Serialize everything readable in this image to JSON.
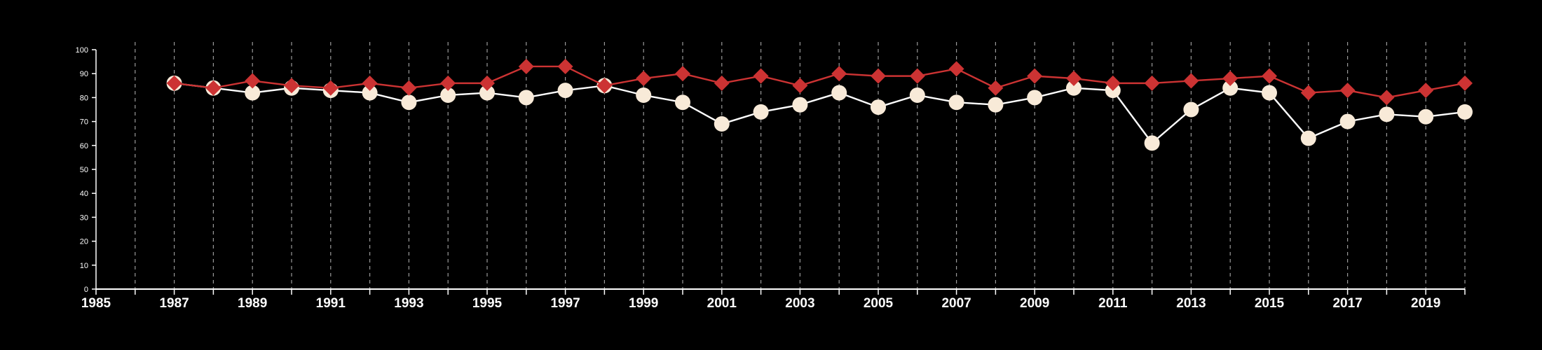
{
  "chart_data": {
    "type": "line",
    "title": "",
    "xlabel": "",
    "ylabel": "",
    "xlim": [
      1985,
      2020
    ],
    "ylim": [
      0,
      100
    ],
    "x_ticks": [
      "1985",
      "1987",
      "1989",
      "1991",
      "1993",
      "1995",
      "1997",
      "1999",
      "2001",
      "2003",
      "2005",
      "2007",
      "2009",
      "2011",
      "2013",
      "2015",
      "2017",
      "2019"
    ],
    "y_ticks": [
      "0",
      "10",
      "20",
      "30",
      "40",
      "50",
      "60",
      "70",
      "80",
      "90",
      "100"
    ],
    "grid": "vertical dashed lines at every year",
    "x": [
      1987,
      1988,
      1989,
      1990,
      1991,
      1992,
      1993,
      1994,
      1995,
      1996,
      1997,
      1998,
      1999,
      2000,
      2001,
      2002,
      2003,
      2004,
      2005,
      2006,
      2007,
      2008,
      2009,
      2010,
      2011,
      2012,
      2013,
      2014,
      2015,
      2016,
      2017,
      2018,
      2019,
      2020
    ],
    "series": [
      {
        "marker": "circle",
        "line_color": "#ffffff",
        "marker_color": "#f8ead8",
        "values": [
          86,
          84,
          82,
          84,
          83,
          82,
          78,
          81,
          82,
          80,
          83,
          85,
          81,
          78,
          69,
          74,
          77,
          82,
          76,
          81,
          78,
          77,
          80,
          84,
          83,
          61,
          75,
          84,
          82,
          63,
          70,
          73,
          72,
          74
        ]
      },
      {
        "marker": "diamond",
        "line_color": "#cc3333",
        "marker_color": "#cc3333",
        "values": [
          86,
          84,
          87,
          85,
          84,
          86,
          84,
          86,
          86,
          93,
          93,
          85,
          88,
          90,
          86,
          89,
          85,
          90,
          89,
          89,
          92,
          84,
          89,
          88,
          86,
          86,
          87,
          88,
          89,
          82,
          83,
          80,
          83,
          86
        ]
      }
    ]
  }
}
